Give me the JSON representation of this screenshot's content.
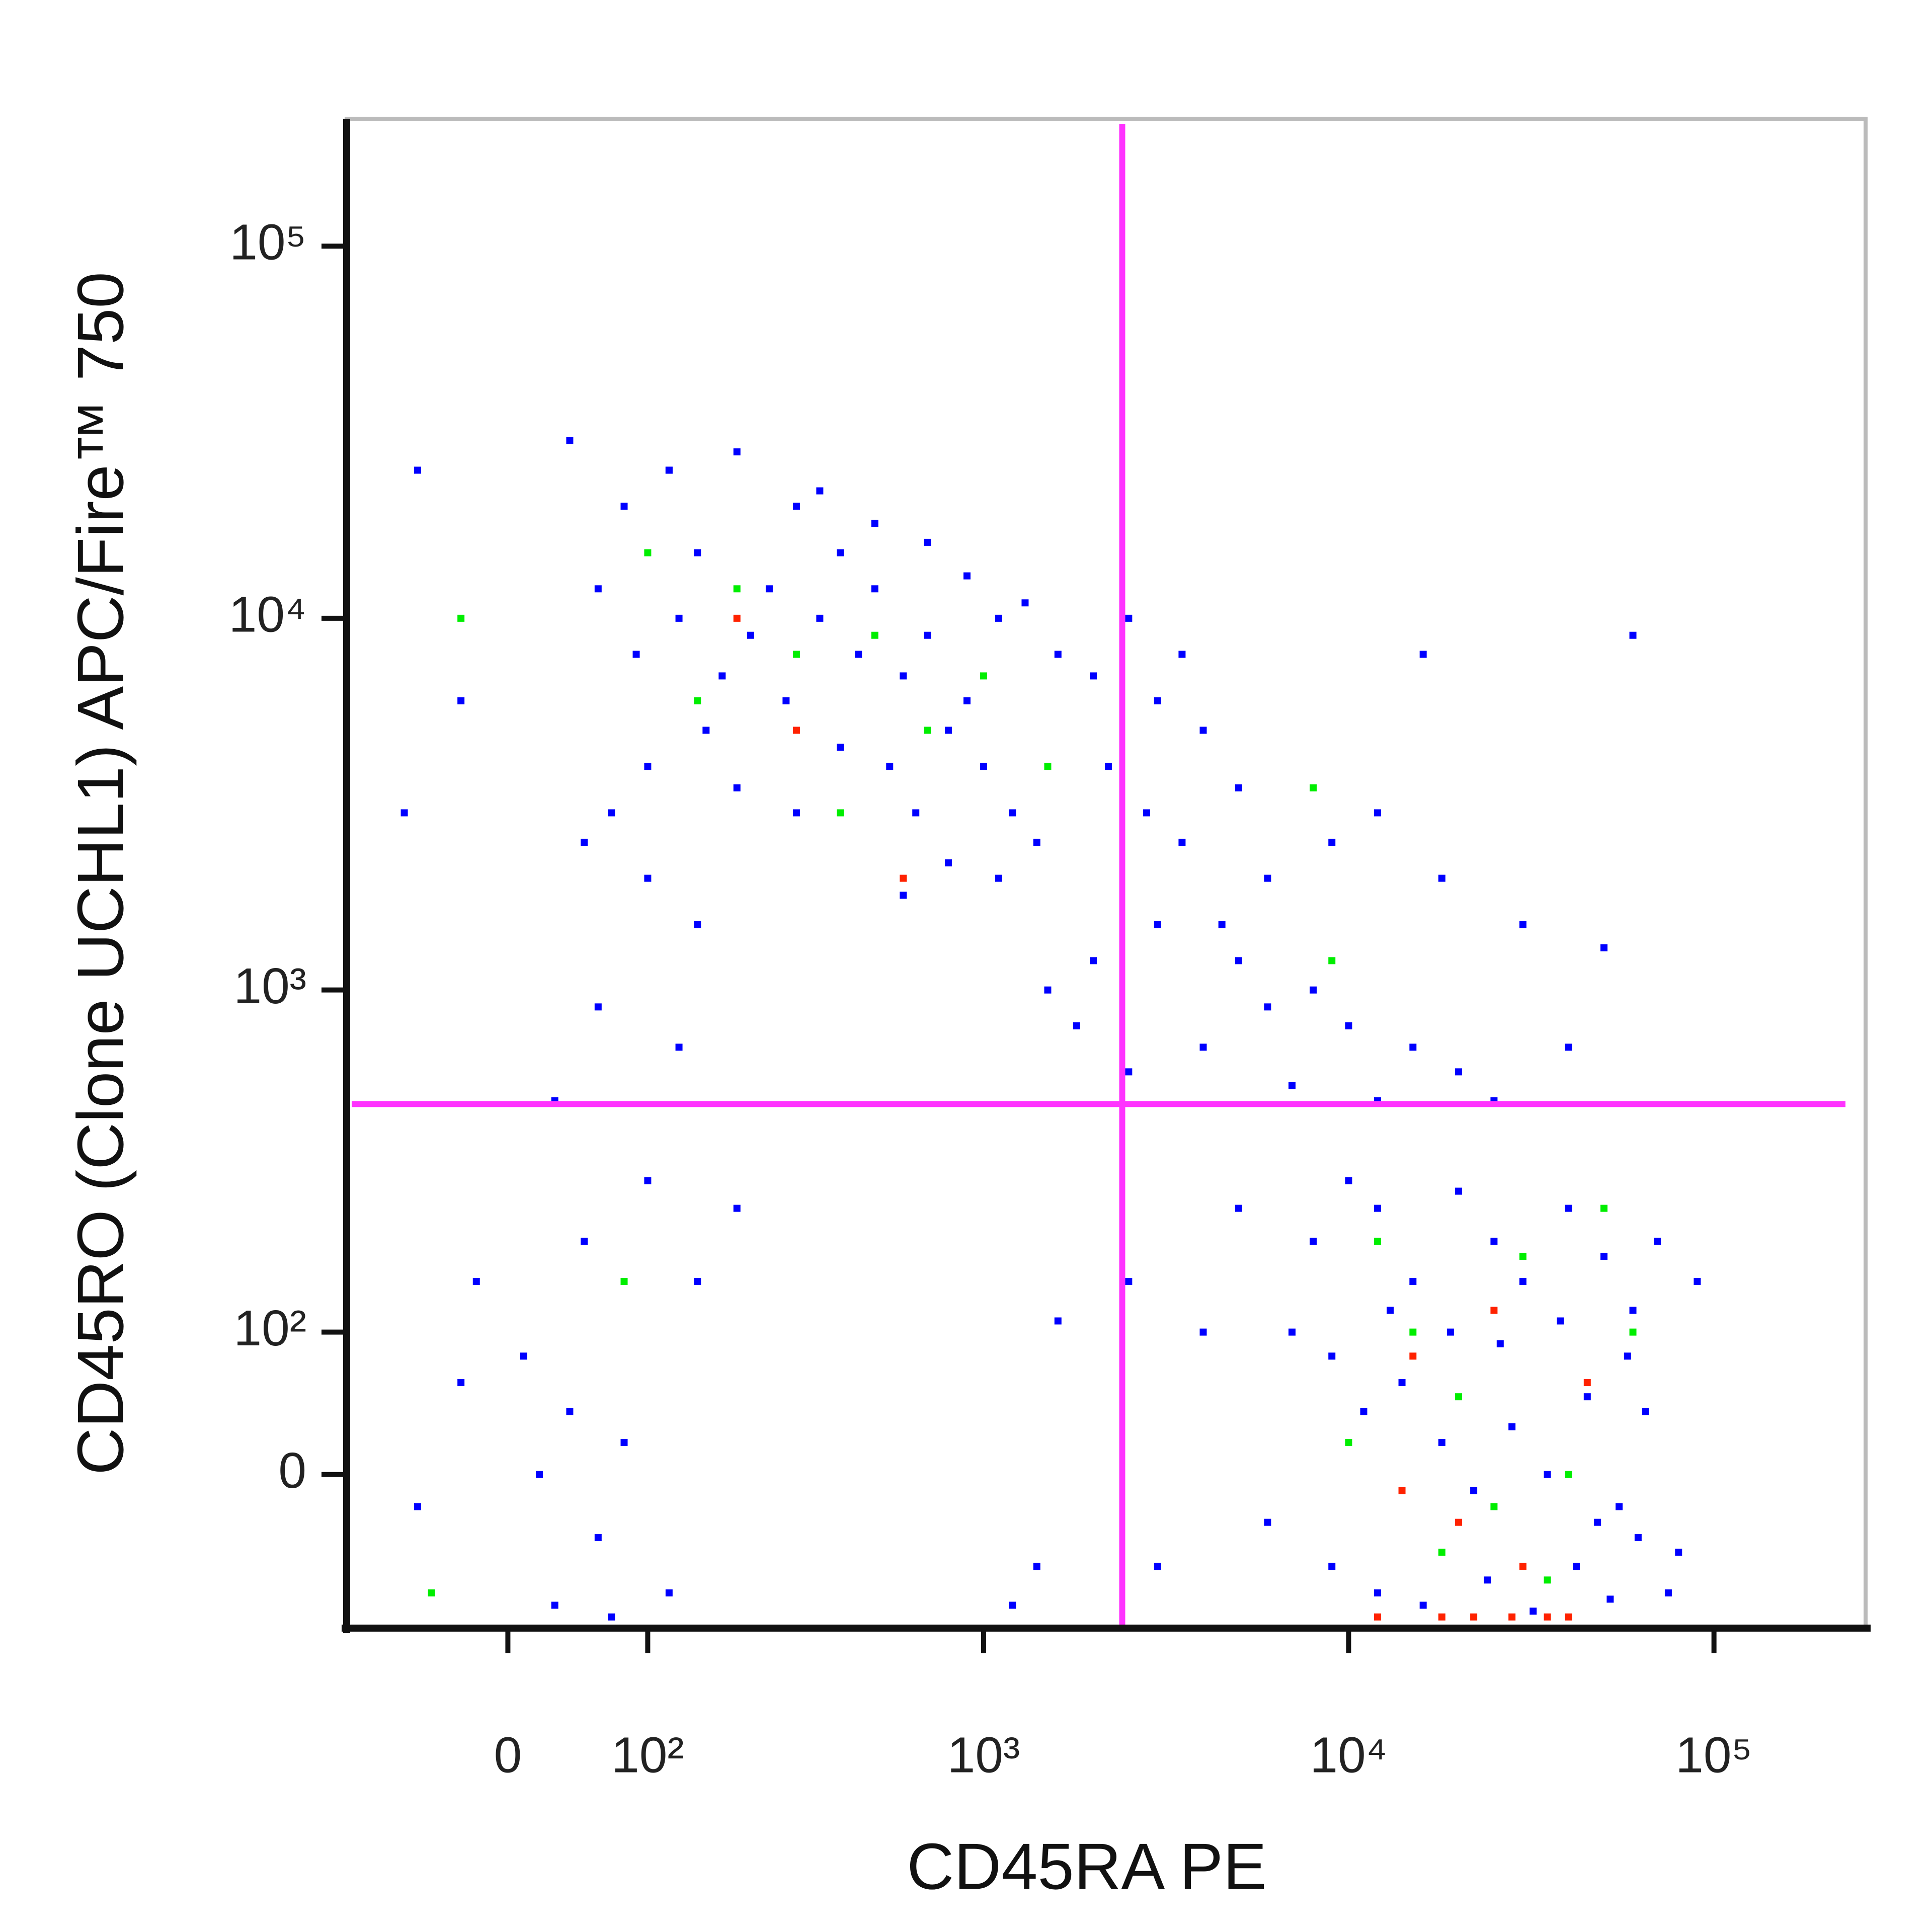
{
  "chart_data": {
    "type": "scatter",
    "x_label": "CD45RA PE",
    "y_label": "CD45RO (Clone UCHL1) APC/Fire™ 750",
    "xscale": "biexponential",
    "yscale": "biexponential",
    "xlim": [
      -120,
      260000
    ],
    "ylim": [
      -110,
      220000
    ],
    "xticks": [
      0,
      {
        "value": 100,
        "label": "10²"
      },
      {
        "value": 1000,
        "label": "10³"
      },
      {
        "value": 10000,
        "label": "10⁴"
      },
      {
        "value": 100000,
        "label": "10⁵"
      }
    ],
    "yticks": [
      0,
      {
        "value": 100,
        "label": "10²"
      },
      {
        "value": 1000,
        "label": "10³"
      },
      {
        "value": 10000,
        "label": "10⁴"
      },
      {
        "value": 100000,
        "label": "10⁵"
      }
    ],
    "gates": {
      "x": 2400,
      "y": 490,
      "color": "#ff33ff"
    },
    "series": [
      {
        "color": "#0000ff",
        "x": [
          40,
          -60,
          80,
          120,
          150,
          200,
          250,
          300,
          60,
          90,
          130,
          180,
          220,
          280,
          350,
          400,
          450,
          500,
          600,
          700,
          800,
          160,
          100,
          70,
          200,
          300,
          400,
          550,
          650,
          900,
          1000,
          1200,
          1400,
          1100,
          800,
          600,
          150,
          100,
          50,
          -30,
          -70,
          120,
          350,
          500,
          700,
          900,
          1100,
          1300,
          1600,
          2000,
          2500,
          3000,
          3500,
          4000,
          2200,
          2800,
          3500,
          5000,
          6000,
          4500,
          3000,
          2000,
          1500,
          1800,
          2500,
          4000,
          6000,
          8000,
          10000,
          15000,
          20000,
          25000,
          12000,
          7000,
          5000,
          9000,
          12000,
          18000,
          30000,
          50000,
          60000,
          16000,
          40000,
          130,
          60,
          30,
          100,
          50,
          150,
          -20,
          10,
          40,
          80,
          20,
          60,
          120,
          -60,
          -30,
          200,
          30,
          70,
          1600,
          1400,
          1200,
          3000,
          2500,
          8000,
          10000,
          12000,
          15000,
          20000,
          25000,
          30000,
          40000,
          50000,
          60000,
          70000,
          90000,
          7000,
          9000,
          11000,
          14000,
          18000,
          22000,
          28000,
          35000,
          45000,
          55000,
          65000,
          80000,
          9000,
          12000,
          16000,
          24000,
          32000,
          42000,
          52000,
          62000,
          75000,
          5000,
          4000,
          6000,
          13000,
          19000,
          26000,
          38000,
          48000,
          58000
        ],
        "y": [
          30000,
          25000,
          20000,
          25000,
          15000,
          28000,
          12000,
          20000,
          12000,
          8000,
          10000,
          7000,
          9000,
          6000,
          10000,
          15000,
          8000,
          12000,
          7000,
          9000,
          5000,
          5000,
          4000,
          3000,
          3500,
          3000,
          4500,
          4000,
          3000,
          6000,
          4000,
          3000,
          2500,
          2000,
          2200,
          1800,
          1500,
          2000,
          2500,
          6000,
          3000,
          25000,
          22000,
          18000,
          16000,
          13000,
          10000,
          11000,
          8000,
          7000,
          10000,
          6000,
          8000,
          5000,
          4000,
          3000,
          2500,
          3500,
          2000,
          1500,
          1500,
          1200,
          1000,
          800,
          600,
          700,
          900,
          1000,
          800,
          700,
          600,
          500,
          500,
          550,
          1200,
          2500,
          3000,
          2000,
          1500,
          1300,
          9000,
          8000,
          700,
          700,
          900,
          500,
          300,
          200,
          150,
          150,
          80,
          40,
          20,
          0,
          -40,
          -80,
          -20,
          60,
          250,
          -90,
          -100,
          110,
          -60,
          -90,
          -60,
          150,
          200,
          300,
          250,
          150,
          280,
          200,
          150,
          250,
          180,
          120,
          200,
          150,
          100,
          80,
          40,
          60,
          20,
          -10,
          30,
          0,
          50,
          -20,
          40,
          -50,
          -60,
          -80,
          -90,
          -70,
          -95,
          -60,
          -85,
          -40,
          -80,
          250,
          100,
          -30,
          120,
          100,
          90,
          110,
          -30,
          80
        ]
      },
      {
        "color": "#00ee00",
        "x": [
          100,
          200,
          300,
          150,
          500,
          700,
          1000,
          400,
          1500,
          8000,
          9000,
          12000,
          15000,
          20000,
          25000,
          30000,
          40000,
          18000,
          35000,
          10000,
          60000,
          50000,
          -30,
          80,
          -50
        ],
        "y": [
          15000,
          12000,
          8000,
          6000,
          9000,
          5000,
          7000,
          3000,
          4000,
          3500,
          1200,
          200,
          100,
          50,
          -20,
          180,
          0,
          -50,
          -70,
          20,
          100,
          250,
          10000,
          150,
          -80
        ]
      },
      {
        "color": "#ff2200",
        "x": [
          15000,
          20000,
          25000,
          30000,
          12000,
          18000,
          22000,
          28000,
          35000,
          40000,
          200,
          300,
          600,
          45000,
          14000
        ],
        "y": [
          80,
          -30,
          120,
          -60,
          -100,
          -100,
          -100,
          -100,
          -100,
          -100,
          10000,
          5000,
          2000,
          60,
          -10
        ]
      }
    ]
  }
}
